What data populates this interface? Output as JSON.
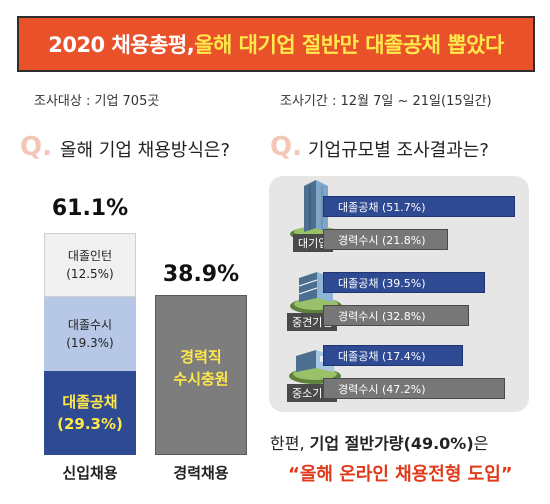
{
  "banner": {
    "part1": "2020 채용총평, ",
    "part2": "올해 대기업 절반만 대졸공채 뽑았다"
  },
  "meta": {
    "target": "조사대상 : 기업 705곳",
    "period": "조사기간 : 12월 7일 ~ 21일(15일간)"
  },
  "q_left": {
    "mark": "Q.",
    "text": "올해 기업 채용방식은?"
  },
  "q_right": {
    "mark": "Q.",
    "text": "기업규모별 조사결과는?"
  },
  "footer": {
    "line1_prefix": "한편, ",
    "line1_bold": "기업 절반가량(49.0%)",
    "line1_suffix": "은",
    "line2": "“올해 온라인 채용전형 도입”"
  },
  "chart_data": [
    {
      "type": "bar",
      "stacked": true,
      "categories": [
        "신입채용",
        "경력채용"
      ],
      "totals": [
        "61.1%",
        "38.9%"
      ],
      "series": [
        {
          "name": "대졸공채",
          "values": [
            29.3,
            0
          ],
          "label": "(29.3%)",
          "color": "#2e4a93"
        },
        {
          "name": "대졸수시",
          "values": [
            19.3,
            0
          ],
          "label": "(19.3%)",
          "color": "#b7c7e6"
        },
        {
          "name": "대졸인턴",
          "values": [
            12.5,
            0
          ],
          "label": "(12.5%)",
          "color": "#f0f0f0"
        },
        {
          "name": "경력직\n수시충원",
          "values": [
            0,
            38.9
          ],
          "color": "#7d7d7d"
        }
      ]
    },
    {
      "type": "bar",
      "orientation": "horizontal",
      "categories": [
        "대기업",
        "중견기업",
        "중소기업"
      ],
      "series": [
        {
          "name": "대졸공채",
          "values": [
            51.7,
            39.5,
            17.4
          ],
          "labels": [
            "대졸공채 (51.7%)",
            "대졸공채 (39.5%)",
            "대졸공채 (17.4%)"
          ],
          "color": "#2e4a93"
        },
        {
          "name": "경력수시",
          "values": [
            21.8,
            32.8,
            47.2
          ],
          "labels": [
            "경력수시 (21.8%)",
            "경력수시 (32.8%)",
            "경력수시 (47.2%)"
          ],
          "color": "#777777"
        }
      ]
    }
  ]
}
